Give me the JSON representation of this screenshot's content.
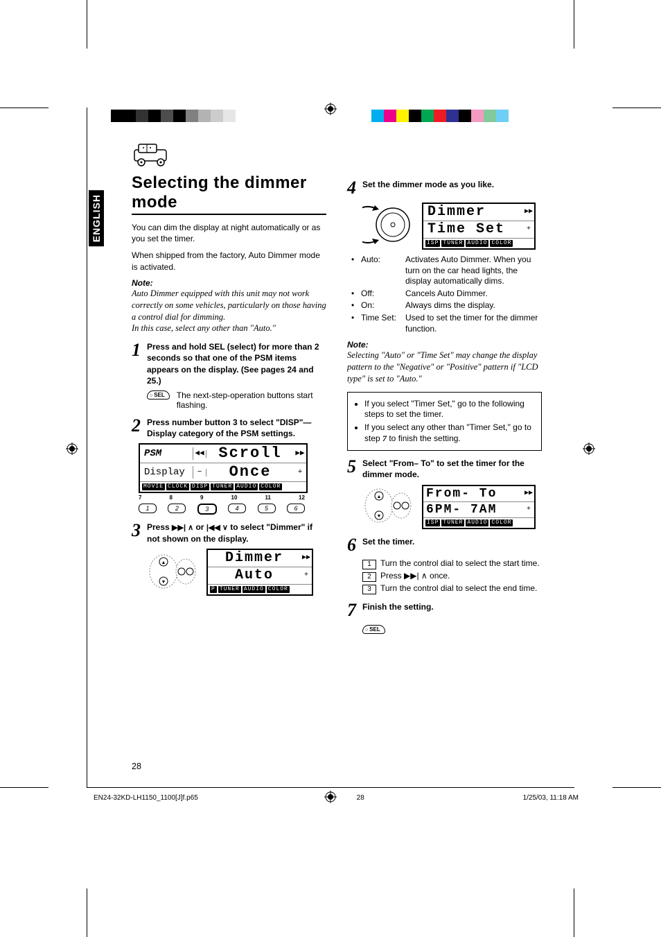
{
  "meta": {
    "page_number": "28",
    "footer_filename": "EN24-32KD-LH1150_1100[J]f.p65",
    "footer_page": "28",
    "footer_timestamp": "1/25/03, 11:18 AM"
  },
  "lang_tab": "ENGLISH",
  "colorbars": {
    "left": [
      "#000000",
      "#000000",
      "#333333",
      "#000000",
      "#4d4d4d",
      "#000000",
      "#808080",
      "#b3b3b3",
      "#cccccc",
      "#e6e6e6",
      "#ffffff"
    ],
    "right": [
      "#00aeef",
      "#ec008c",
      "#fff200",
      "#000000",
      "#00a651",
      "#ed1c24",
      "#2e3192",
      "#000000",
      "#f49ac1",
      "#82ca9c",
      "#6dcff6"
    ]
  },
  "heading": "Selecting the dimmer mode",
  "intro1": "You can dim the display at night automatically or as you set the timer.",
  "intro2": "When shipped from the factory, Auto Dimmer mode is activated.",
  "note_label": "Note:",
  "note1_l1": "Auto Dimmer equipped with this unit may not work correctly on some vehicles, particularly on those having a control dial for dimming.",
  "note1_l2": "In this case, select any other than \"Auto.\"",
  "step1": {
    "num": "1",
    "text": "Press and hold SEL (select) for more than 2 seconds so that one of the PSM items appears on the display. (See pages 24 and 25.)",
    "sub": "The next-step-operation buttons start flashing.",
    "sel_label": "SEL"
  },
  "step2": {
    "num": "2",
    "text": "Press number button 3 to select \"DISP\"—Display category of the PSM settings.",
    "lcd": {
      "tl": "PSM",
      "bl": "Display",
      "r1": "Scroll",
      "r2": "Once",
      "tabs": [
        "MOVIE",
        "CLOCK",
        "DISP",
        "TUNER",
        "AUDIO",
        "COLOR"
      ],
      "btn_nums_top": [
        "7",
        "8",
        "9",
        "10",
        "11",
        "12"
      ],
      "btn_nums": [
        "1",
        "2",
        "3",
        "4",
        "5",
        "6"
      ]
    }
  },
  "step3": {
    "num": "3",
    "text_pre": "Press ",
    "text_mid": " or ",
    "text_post": " to select \"Dimmer\" if not shown on the display.",
    "lcd": {
      "r1": "Dimmer",
      "r2": "Auto",
      "tabs": [
        "P",
        "TUNER",
        "AUDIO",
        "COLOR"
      ]
    }
  },
  "step4": {
    "num": "4",
    "text": "Set the dimmer mode as you like.",
    "lcd": {
      "r1": "Dimmer",
      "r2": "Time Set",
      "tabs": [
        "ISP",
        "TUNER",
        "AUDIO",
        "COLOR"
      ]
    },
    "opts": [
      {
        "label": "Auto:",
        "desc": "Activates Auto Dimmer. When you turn on the car head lights, the display automatically dims."
      },
      {
        "label": "Off:",
        "desc": "Cancels Auto Dimmer."
      },
      {
        "label": "On:",
        "desc": "Always dims the display."
      },
      {
        "label": "Time Set:",
        "desc": "Used to set the timer for the dimmer function."
      }
    ]
  },
  "note2_l1": "Selecting \"Auto\" or \"Time Set\" may change the display pattern to the \"Negative\" or \"Positive\" pattern if \"LCD type\" is set to \"Auto.\"",
  "boxed": {
    "i1": "If you select \"Timer Set,\" go to the following steps to set the timer.",
    "i2_pre": "If you select any other than \"Timer Set,\" go to step ",
    "i2_num": "7",
    "i2_post": " to finish the setting."
  },
  "step5": {
    "num": "5",
    "text": "Select \"From– To\" to set the timer for the dimmer mode.",
    "lcd": {
      "r1": "From- To",
      "r2": "6PM- 7AM",
      "tabs": [
        "ISP",
        "TUNER",
        "AUDIO",
        "COLOR"
      ]
    }
  },
  "step6": {
    "num": "6",
    "text": "Set the timer.",
    "subs": [
      "Turn the control dial to select the start time.",
      "Press ▶▶| ∧ once.",
      "Turn the control dial to select the end time."
    ]
  },
  "step7": {
    "num": "7",
    "text": "Finish the setting.",
    "sel_label": "SEL"
  }
}
